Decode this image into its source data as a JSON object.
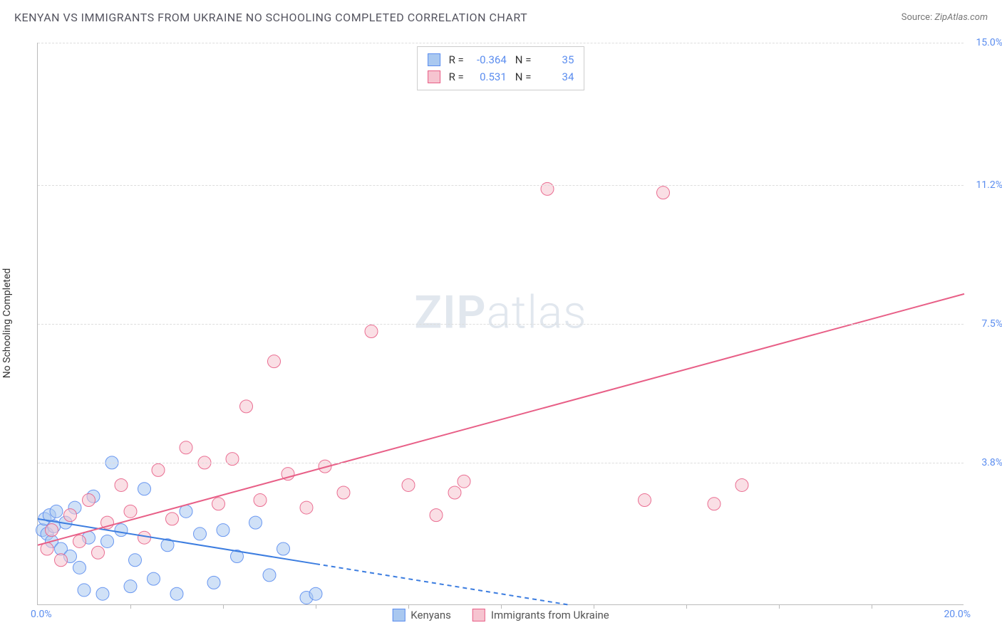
{
  "title": "KENYAN VS IMMIGRANTS FROM UKRAINE NO SCHOOLING COMPLETED CORRELATION CHART",
  "source_label": "Source:",
  "source_value": "ZipAtlas.com",
  "ylabel": "No Schooling Completed",
  "watermark_bold": "ZIP",
  "watermark_light": "atlas",
  "chart": {
    "type": "scatter",
    "background_color": "#ffffff",
    "grid_color": "#dddddd",
    "axis_color": "#bbbbbb",
    "tick_label_color": "#5b8def",
    "xlim": [
      0,
      20
    ],
    "ylim": [
      0,
      15
    ],
    "x_origin_label": "0.0%",
    "x_max_label": "20.0%",
    "y_ticks": [
      {
        "v": 3.8,
        "label": "3.8%"
      },
      {
        "v": 7.5,
        "label": "7.5%"
      },
      {
        "v": 11.2,
        "label": "11.2%"
      },
      {
        "v": 15.0,
        "label": "15.0%"
      }
    ],
    "x_tick_step": 2,
    "marker_radius": 9,
    "marker_opacity": 0.55,
    "marker_stroke_opacity": 0.9,
    "series": [
      {
        "name": "Kenyans",
        "fill": "#a9c8f0",
        "stroke": "#5b8def",
        "R": "-0.364",
        "N": "35",
        "trend": {
          "x1": 0,
          "y1": 2.3,
          "x2": 6,
          "y2": 1.1,
          "solid_until_x": 6,
          "dash_to_x": 11.5,
          "dash_to_y": 0
        },
        "trend_color": "#3c7de0",
        "trend_width": 2,
        "points": [
          [
            0.1,
            2.0
          ],
          [
            0.15,
            2.3
          ],
          [
            0.2,
            1.9
          ],
          [
            0.25,
            2.4
          ],
          [
            0.3,
            1.7
          ],
          [
            0.35,
            2.1
          ],
          [
            0.4,
            2.5
          ],
          [
            0.5,
            1.5
          ],
          [
            0.6,
            2.2
          ],
          [
            0.7,
            1.3
          ],
          [
            0.8,
            2.6
          ],
          [
            0.9,
            1.0
          ],
          [
            1.0,
            0.4
          ],
          [
            1.1,
            1.8
          ],
          [
            1.2,
            2.9
          ],
          [
            1.4,
            0.3
          ],
          [
            1.5,
            1.7
          ],
          [
            1.6,
            3.8
          ],
          [
            1.8,
            2.0
          ],
          [
            2.0,
            0.5
          ],
          [
            2.1,
            1.2
          ],
          [
            2.3,
            3.1
          ],
          [
            2.5,
            0.7
          ],
          [
            2.8,
            1.6
          ],
          [
            3.0,
            0.3
          ],
          [
            3.2,
            2.5
          ],
          [
            3.5,
            1.9
          ],
          [
            3.8,
            0.6
          ],
          [
            4.0,
            2.0
          ],
          [
            4.3,
            1.3
          ],
          [
            4.7,
            2.2
          ],
          [
            5.0,
            0.8
          ],
          [
            5.3,
            1.5
          ],
          [
            5.8,
            0.2
          ],
          [
            6.0,
            0.3
          ]
        ]
      },
      {
        "name": "Immigrants from Ukraine",
        "fill": "#f6c4d0",
        "stroke": "#e85f87",
        "R": "0.531",
        "N": "34",
        "trend": {
          "x1": 0,
          "y1": 1.6,
          "x2": 20,
          "y2": 8.3
        },
        "trend_color": "#e85f87",
        "trend_width": 2,
        "points": [
          [
            0.2,
            1.5
          ],
          [
            0.3,
            2.0
          ],
          [
            0.5,
            1.2
          ],
          [
            0.7,
            2.4
          ],
          [
            0.9,
            1.7
          ],
          [
            1.1,
            2.8
          ],
          [
            1.3,
            1.4
          ],
          [
            1.5,
            2.2
          ],
          [
            1.8,
            3.2
          ],
          [
            2.0,
            2.5
          ],
          [
            2.3,
            1.8
          ],
          [
            2.6,
            3.6
          ],
          [
            2.9,
            2.3
          ],
          [
            3.2,
            4.2
          ],
          [
            3.6,
            3.8
          ],
          [
            3.9,
            2.7
          ],
          [
            4.2,
            3.9
          ],
          [
            4.5,
            5.3
          ],
          [
            4.8,
            2.8
          ],
          [
            5.1,
            6.5
          ],
          [
            5.4,
            3.5
          ],
          [
            5.8,
            2.6
          ],
          [
            6.2,
            3.7
          ],
          [
            6.6,
            3.0
          ],
          [
            7.2,
            7.3
          ],
          [
            8.0,
            3.2
          ],
          [
            8.6,
            2.4
          ],
          [
            9.2,
            3.3
          ],
          [
            11.0,
            11.1
          ],
          [
            13.1,
            2.8
          ],
          [
            13.5,
            11.0
          ],
          [
            14.6,
            2.7
          ],
          [
            15.2,
            3.2
          ],
          [
            9.0,
            3.0
          ]
        ]
      }
    ]
  },
  "legend_bottom": [
    {
      "label": "Kenyans",
      "fill": "#a9c8f0",
      "stroke": "#5b8def"
    },
    {
      "label": "Immigrants from Ukraine",
      "fill": "#f6c4d0",
      "stroke": "#e85f87"
    }
  ]
}
